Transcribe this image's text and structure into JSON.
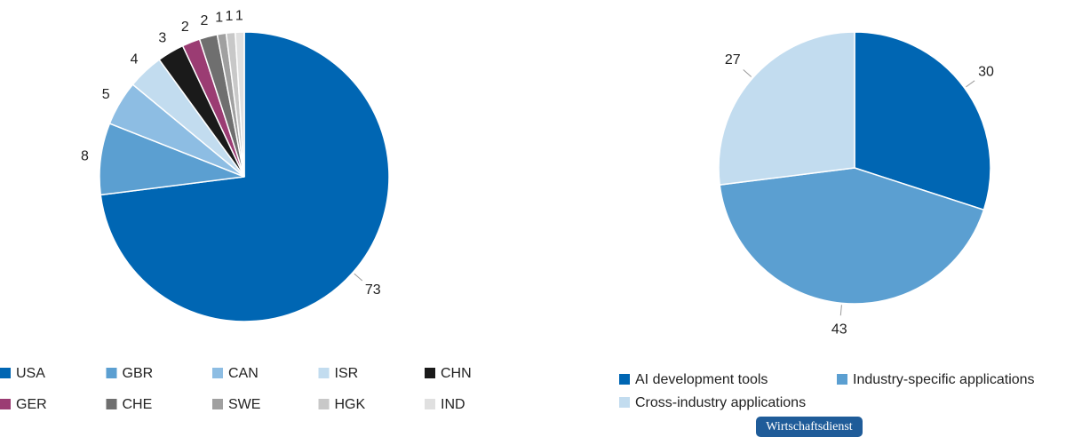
{
  "chart_data": [
    {
      "type": "pie",
      "categories": [
        "USA",
        "GBR",
        "CAN",
        "ISR",
        "CHN",
        "GER",
        "CHE",
        "SWE",
        "HGK",
        "IND"
      ],
      "values": [
        73,
        8,
        5,
        4,
        3,
        2,
        2,
        1,
        1,
        1
      ],
      "colors": [
        "#0066b3",
        "#5b9fd1",
        "#8dbde3",
        "#c2dcef",
        "#1a1a1a",
        "#9b3c73",
        "#6f6f6f",
        "#a0a0a0",
        "#c8c8c8",
        "#e0e0e0"
      ]
    },
    {
      "type": "pie",
      "categories": [
        "AI development tools",
        "Industry-specific applications",
        "Cross-industry applications"
      ],
      "values": [
        30,
        43,
        27
      ],
      "colors": [
        "#0066b3",
        "#5b9fd1",
        "#c2dcef"
      ]
    }
  ],
  "footer": {
    "badge": "Wirtschaftsdienst"
  }
}
